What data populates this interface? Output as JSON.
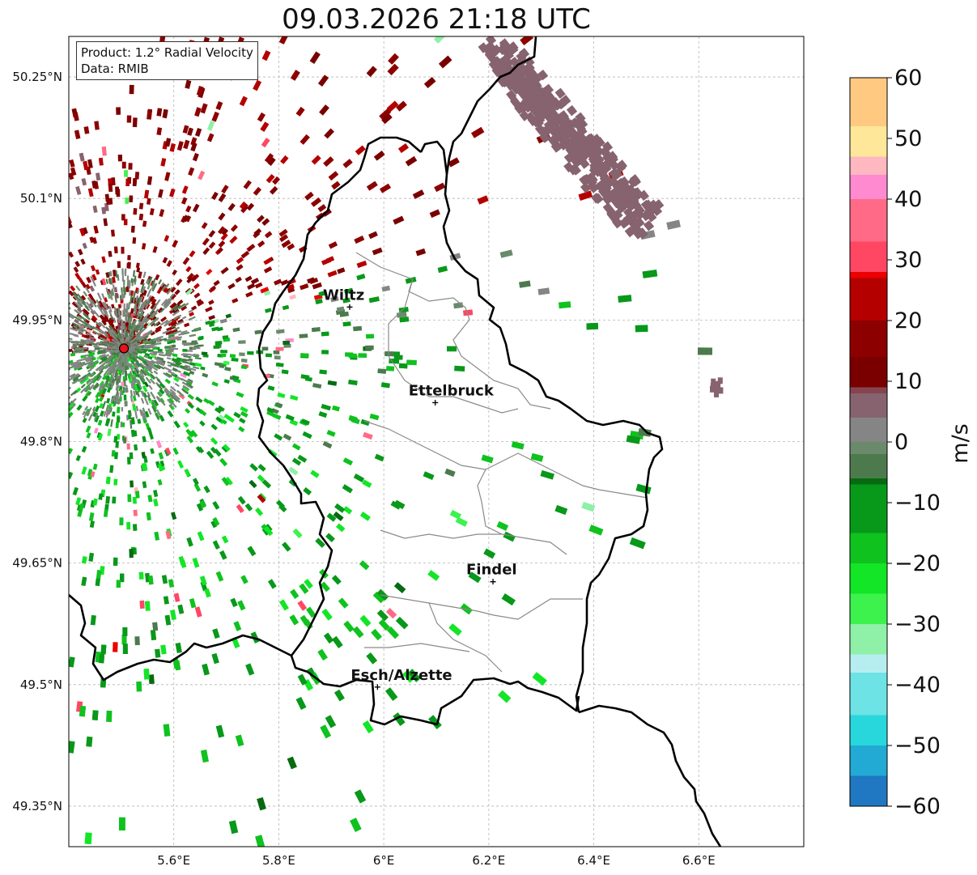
{
  "title": "09.03.2026 21:18 UTC",
  "info": {
    "product": "Product: 1.2° Radial Velocity",
    "data_source": "Data: RMIB"
  },
  "map": {
    "extent": {
      "lon_min": 5.4,
      "lon_max": 6.8,
      "lat_min": 49.3,
      "lat_max": 50.3
    },
    "lon_ticks": [
      {
        "value": 5.6,
        "label": "5.6°E"
      },
      {
        "value": 5.8,
        "label": "5.8°E"
      },
      {
        "value": 6.0,
        "label": "6°E"
      },
      {
        "value": 6.2,
        "label": "6.2°E"
      },
      {
        "value": 6.4,
        "label": "6.4°E"
      },
      {
        "value": 6.6,
        "label": "6.6°E"
      }
    ],
    "lat_ticks": [
      {
        "value": 49.35,
        "label": "49.35°N"
      },
      {
        "value": 49.5,
        "label": "49.5°N"
      },
      {
        "value": 49.65,
        "label": "49.65°N"
      },
      {
        "value": 49.8,
        "label": "49.8°N"
      },
      {
        "value": 49.95,
        "label": "49.95°N"
      },
      {
        "value": 50.1,
        "label": "50.1°N"
      },
      {
        "value": 50.25,
        "label": "50.25°N"
      }
    ],
    "grid": true,
    "radar_site": {
      "lon": 5.505,
      "lat": 49.915,
      "color": "#e8121b"
    },
    "cities": [
      {
        "name": "Wiltz",
        "lon": 5.935,
        "lat": 49.966
      },
      {
        "name": "Ettelbruck",
        "lon": 6.098,
        "lat": 49.848
      },
      {
        "name": "Findel",
        "lon": 6.208,
        "lat": 49.627
      },
      {
        "name": "Esch/Alzette",
        "lon": 5.988,
        "lat": 49.497
      }
    ]
  },
  "colorbar": {
    "label": "m/s",
    "min": -60,
    "max": 60,
    "ticks": [
      {
        "value": 60,
        "label": "60"
      },
      {
        "value": 50,
        "label": "50"
      },
      {
        "value": 40,
        "label": "40"
      },
      {
        "value": 30,
        "label": "30"
      },
      {
        "value": 20,
        "label": "20"
      },
      {
        "value": 10,
        "label": "10"
      },
      {
        "value": 0,
        "label": "0"
      },
      {
        "value": -10,
        "label": "−10"
      },
      {
        "value": -20,
        "label": "−20"
      },
      {
        "value": -30,
        "label": "−30"
      },
      {
        "value": -40,
        "label": "−40"
      },
      {
        "value": -50,
        "label": "−50"
      },
      {
        "value": -60,
        "label": "−60"
      }
    ],
    "stops": [
      {
        "v": -60,
        "c": "#1f78c1"
      },
      {
        "v": -55,
        "c": "#22a9d4"
      },
      {
        "v": -50,
        "c": "#27d7dc"
      },
      {
        "v": -45,
        "c": "#6de3e6"
      },
      {
        "v": -38,
        "c": "#b6eef0"
      },
      {
        "v": -35,
        "c": "#8ff0a8"
      },
      {
        "v": -30,
        "c": "#3ef24e"
      },
      {
        "v": -25,
        "c": "#12e626"
      },
      {
        "v": -20,
        "c": "#0fc21e"
      },
      {
        "v": -15,
        "c": "#08981a"
      },
      {
        "v": -7,
        "c": "#066b10"
      },
      {
        "v": -6,
        "c": "#4d7a4d"
      },
      {
        "v": -2,
        "c": "#6b8a6b"
      },
      {
        "v": 0,
        "c": "#868585"
      },
      {
        "v": 4,
        "c": "#86636e"
      },
      {
        "v": 8,
        "c": "#864450"
      },
      {
        "v": 9,
        "c": "#7a0000"
      },
      {
        "v": 14,
        "c": "#8c0000"
      },
      {
        "v": 20,
        "c": "#b50000"
      },
      {
        "v": 27,
        "c": "#ea0000"
      },
      {
        "v": 28,
        "c": "#ff4663"
      },
      {
        "v": 33,
        "c": "#ff6a86"
      },
      {
        "v": 40,
        "c": "#ff8ad0"
      },
      {
        "v": 44,
        "c": "#ffb7c0"
      },
      {
        "v": 47,
        "c": "#ffe79a"
      },
      {
        "v": 52,
        "c": "#ffc982"
      },
      {
        "v": 60,
        "c": "#ff9a55"
      }
    ]
  }
}
